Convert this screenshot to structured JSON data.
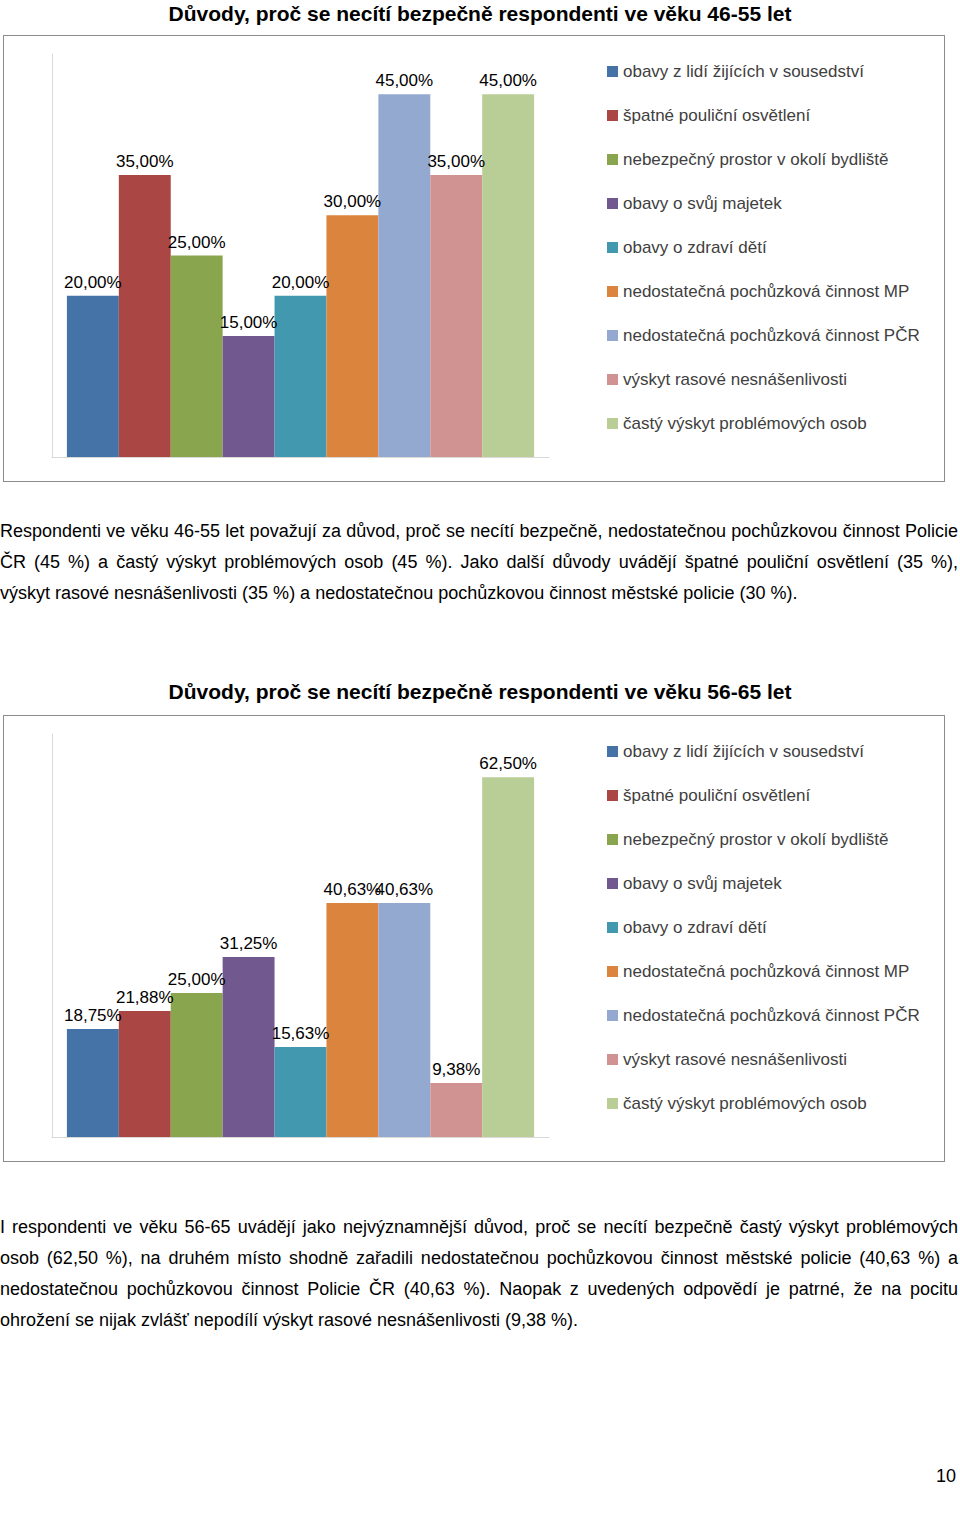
{
  "chart_data": [
    {
      "type": "bar",
      "title": "Důvody, proč se necítí bezpečně respondenti ve věku 46-55 let",
      "categories": [
        null
      ],
      "ylim": [
        0,
        50
      ],
      "grid": false,
      "tick_labels": false,
      "legend": "right",
      "data_labels": true,
      "series": [
        {
          "name": "obavy z lidí žijících v sousedství",
          "color": "#4572A7",
          "values": [
            20
          ],
          "value_labels": [
            "20,00%"
          ]
        },
        {
          "name": "špatné pouliční osvětlení",
          "color": "#AA4643",
          "values": [
            35
          ],
          "value_labels": [
            "35,00%"
          ]
        },
        {
          "name": "nebezpečný prostor v okolí bydliště",
          "color": "#89A54E",
          "values": [
            25
          ],
          "value_labels": [
            "25,00%"
          ]
        },
        {
          "name": "obavy o svůj majetek",
          "color": "#71588F",
          "values": [
            15
          ],
          "value_labels": [
            "15,00%"
          ]
        },
        {
          "name": "obavy o zdraví dětí",
          "color": "#4198AF",
          "values": [
            20
          ],
          "value_labels": [
            "20,00%"
          ]
        },
        {
          "name": "nedostatečná pochůzková činnost MP",
          "color": "#DB843D",
          "values": [
            30
          ],
          "value_labels": [
            "30,00%"
          ]
        },
        {
          "name": "nedostatečná pochůzková činnost PČR",
          "color": "#93A9CF",
          "values": [
            45
          ],
          "value_labels": [
            "45,00%"
          ]
        },
        {
          "name": "výskyt rasové nesnášenlivosti",
          "color": "#D19392",
          "values": [
            35
          ],
          "value_labels": [
            "35,00%"
          ]
        },
        {
          "name": "častý výskyt problémových osob",
          "color": "#B9CD96",
          "values": [
            45
          ],
          "value_labels": [
            "45,00%"
          ]
        }
      ]
    },
    {
      "type": "bar",
      "title": "Důvody, proč se necítí bezpečně respondenti ve věku 56-65 let",
      "categories": [
        null
      ],
      "ylim": [
        0,
        70
      ],
      "grid": false,
      "tick_labels": false,
      "legend": "right",
      "data_labels": true,
      "series": [
        {
          "name": "obavy z lidí žijících v sousedství",
          "color": "#4572A7",
          "values": [
            18.75
          ],
          "value_labels": [
            "18,75%"
          ]
        },
        {
          "name": "špatné pouliční osvětlení",
          "color": "#AA4643",
          "values": [
            21.88
          ],
          "value_labels": [
            "21,88%"
          ]
        },
        {
          "name": "nebezpečný prostor v okolí bydliště",
          "color": "#89A54E",
          "values": [
            25
          ],
          "value_labels": [
            "25,00%"
          ]
        },
        {
          "name": "obavy o svůj majetek",
          "color": "#71588F",
          "values": [
            31.25
          ],
          "value_labels": [
            "31,25%"
          ]
        },
        {
          "name": "obavy o zdraví dětí",
          "color": "#4198AF",
          "values": [
            15.63
          ],
          "value_labels": [
            "15,63%"
          ]
        },
        {
          "name": "nedostatečná pochůzková činnost MP",
          "color": "#DB843D",
          "values": [
            40.63
          ],
          "value_labels": [
            "40,63%"
          ]
        },
        {
          "name": "nedostatečná pochůzková činnost PČR",
          "color": "#93A9CF",
          "values": [
            40.63
          ],
          "value_labels": [
            "40,63%"
          ]
        },
        {
          "name": "výskyt rasové nesnášenlivosti",
          "color": "#D19392",
          "values": [
            9.38
          ],
          "value_labels": [
            "9,38%"
          ]
        },
        {
          "name": "častý výskyt problémových osob",
          "color": "#B9CD96",
          "values": [
            62.5
          ],
          "value_labels": [
            "62,50%"
          ]
        }
      ]
    }
  ],
  "paragraphs": [
    "Respondenti ve věku 46-55 let považují za důvod, proč se necítí bezpečně, nedostatečnou pochůzkovou činnost Policie ČR (45 %) a častý výskyt problémových osob (45 %). Jako další důvody uvádějí špatné pouliční osvětlení (35 %), výskyt rasové nesnášenlivosti (35 %) a nedostatečnou pochůzkovou činnost městské policie (30 %).",
    "I respondenti ve věku 56-65 uvádějí jako nejvýznamnější důvod, proč se necítí bezpečně častý výskyt problémových osob (62,50 %), na druhém místo shodně zařadili nedostatečnou pochůzkovou činnost městské policie (40,63 %) a nedostatečnou pochůzkovou činnost Policie ČR (40,63 %). Naopak z uvedených odpovědí je patrné, že na pocitu ohrožení se nijak zvlášť nepodílí výskyt rasové nesnášenlivosti (9,38 %)."
  ],
  "page_number": "10"
}
